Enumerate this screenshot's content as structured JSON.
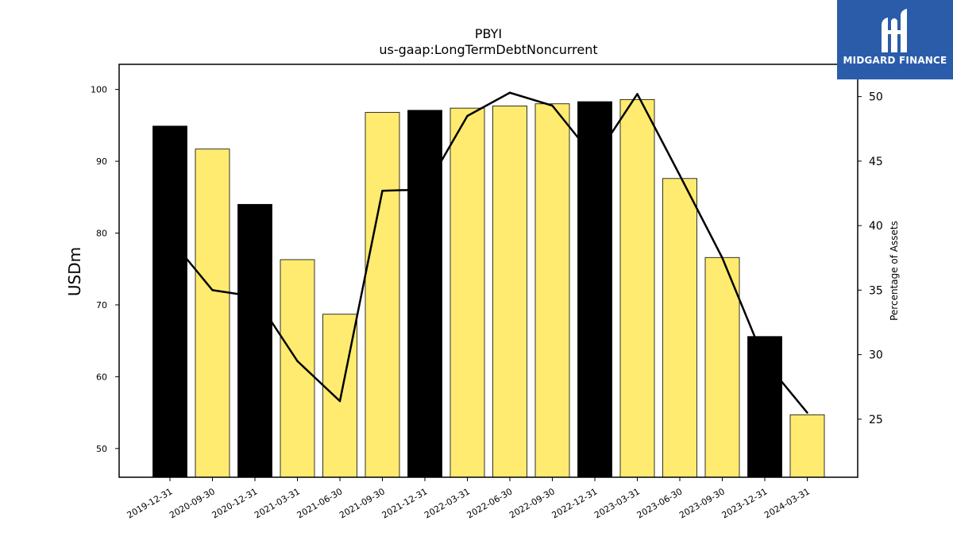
{
  "chart_data": {
    "type": "bar",
    "title": "PBYI",
    "subtitle": "us-gaap:LongTermDebtNoncurrent",
    "ylabel": "USDm",
    "y2label": "Percentage of Assets",
    "ylim": [
      46,
      103.5
    ],
    "y2lim": [
      20.5,
      52.5
    ],
    "yticks": [
      50,
      60,
      70,
      80,
      90,
      100
    ],
    "y2ticks": [
      25,
      30,
      35,
      40,
      45,
      50
    ],
    "categories": [
      "2019-12-31",
      "2020-09-30",
      "2020-12-31",
      "2021-03-31",
      "2021-06-30",
      "2021-09-30",
      "2021-12-31",
      "2022-03-31",
      "2022-06-30",
      "2022-09-30",
      "2022-12-31",
      "2023-03-31",
      "2023-06-30",
      "2023-09-30",
      "2023-12-31",
      "2024-03-31"
    ],
    "series": [
      {
        "kind": "bar",
        "values": [
          94.9,
          91.7,
          84.0,
          76.3,
          68.7,
          96.8,
          97.1,
          97.4,
          97.7,
          98.0,
          98.3,
          98.6,
          87.6,
          76.6,
          65.6,
          54.7
        ],
        "colors": [
          "#000000",
          "#ffeb70",
          "#000000",
          "#ffeb70",
          "#ffeb70",
          "#ffeb70",
          "#000000",
          "#ffeb70",
          "#ffeb70",
          "#ffeb70",
          "#000000",
          "#ffeb70",
          "#ffeb70",
          "#ffeb70",
          "#000000",
          "#ffeb70"
        ]
      },
      {
        "kind": "line",
        "axis": "right",
        "color": "#000000",
        "values": [
          39.0,
          35.0,
          34.5,
          29.5,
          26.4,
          42.7,
          42.8,
          48.5,
          50.3,
          49.3,
          45.2,
          50.2,
          43.9,
          37.5,
          29.5,
          25.5
        ]
      }
    ],
    "grid": false,
    "legend": "none"
  },
  "logo": {
    "text": "MIDGARD FINANCE"
  }
}
